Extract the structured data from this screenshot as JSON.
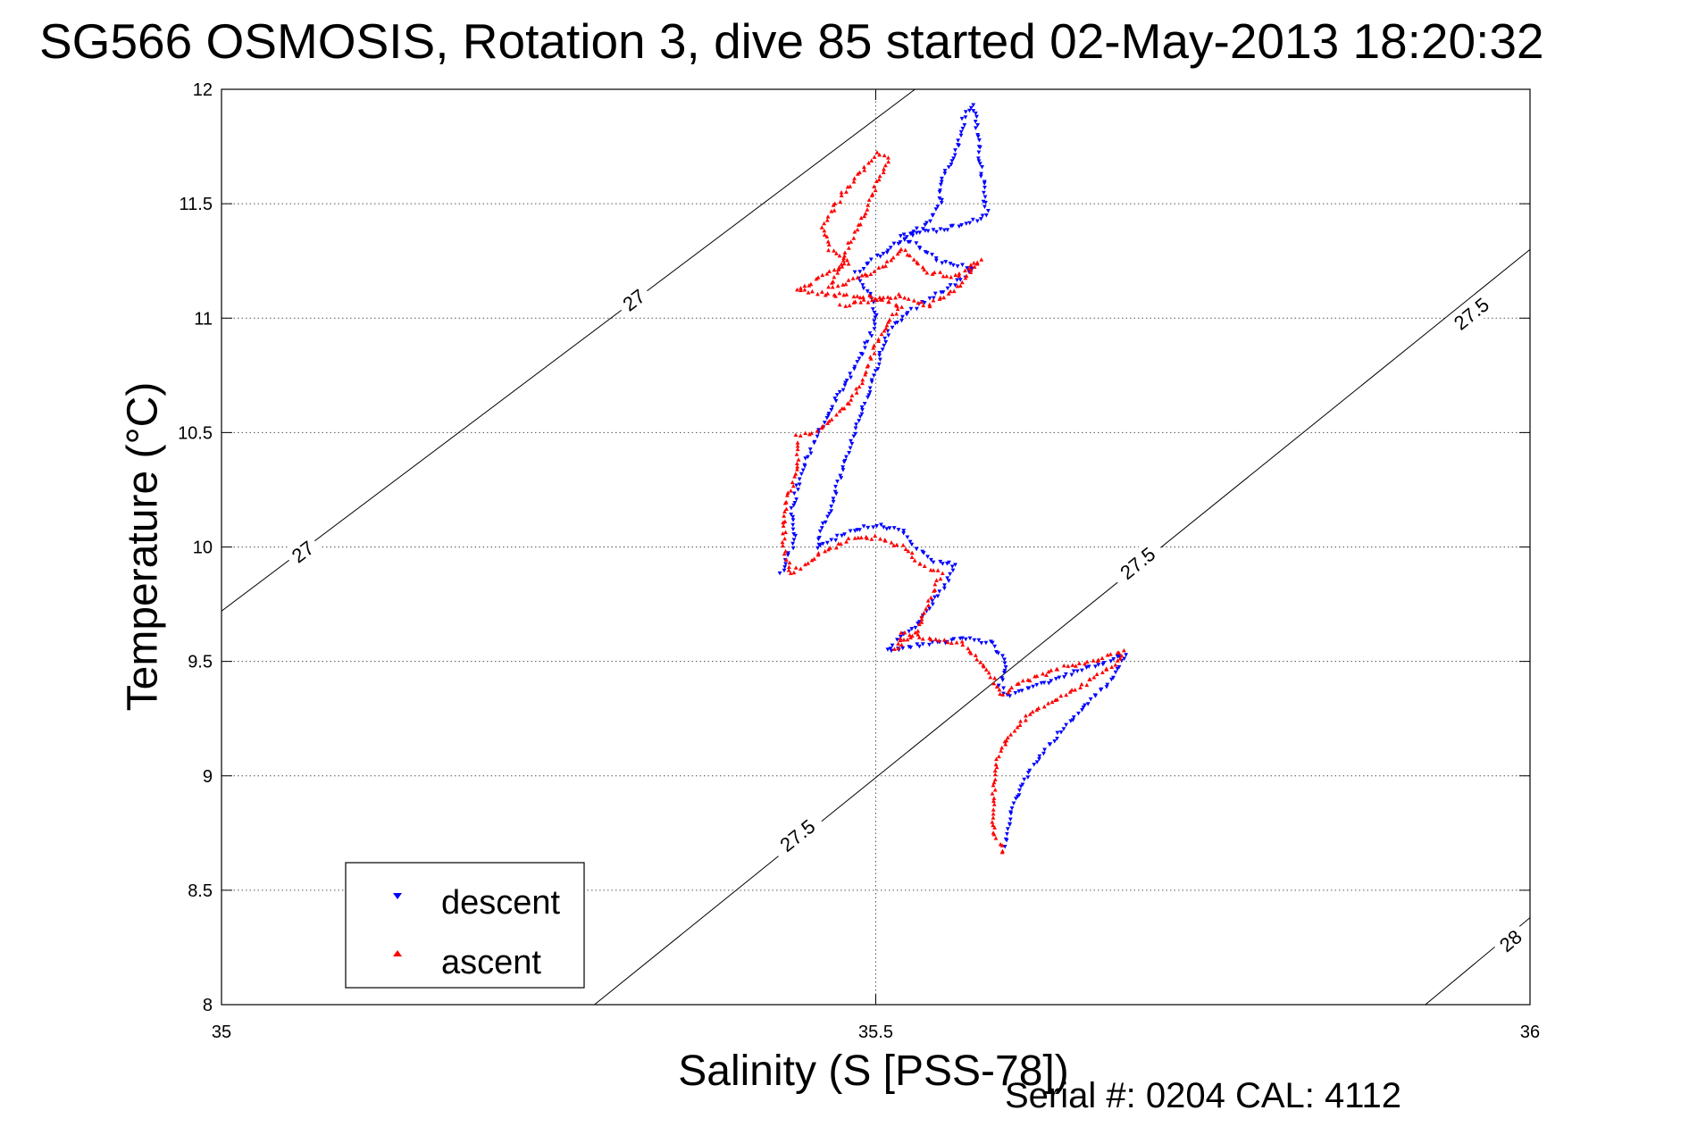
{
  "chart_data": {
    "type": "scatter",
    "title": "SG566 OSMOSIS, Rotation 3, dive 85 started 02-May-2013 18:20:32",
    "xlabel": "Salinity (S [PSS-78])",
    "ylabel": "Temperature (°C)",
    "footer": "Serial #: 0204  CAL: 4112",
    "xlim": [
      35,
      36
    ],
    "ylim": [
      8,
      12
    ],
    "xticks": [
      35,
      35.5,
      36
    ],
    "xtick_labels": [
      "35",
      "35.5",
      "36"
    ],
    "yticks": [
      8,
      8.5,
      9,
      9.5,
      10,
      10.5,
      11,
      11.5,
      12
    ],
    "ytick_labels": [
      "8",
      "8.5",
      "9",
      "9.5",
      "10",
      "10.5",
      "11",
      "11.5",
      "12"
    ],
    "grid": true,
    "legend_position": "bottom-left",
    "density_contours": [
      {
        "label": "27",
        "points": [
          [
            35.0,
            9.72
          ],
          [
            35.53,
            12.0
          ]
        ],
        "label_positions": [
          [
            35.062,
            9.98
          ],
          [
            35.315,
            11.08
          ]
        ]
      },
      {
        "label": "27.5",
        "points": [
          [
            35.285,
            8.0
          ],
          [
            36.0,
            11.3
          ]
        ],
        "label_positions": [
          [
            35.44,
            8.74
          ],
          [
            35.7,
            9.93
          ],
          [
            35.955,
            11.02
          ]
        ]
      },
      {
        "label": "28",
        "points": [
          [
            35.92,
            8.0
          ],
          [
            36.0,
            8.38
          ]
        ],
        "label_positions": [
          [
            35.985,
            8.28
          ]
        ]
      }
    ],
    "series": [
      {
        "name": "descent",
        "marker": "triangle-down",
        "color": "#0000ff",
        "path": [
          [
            35.428,
            9.88
          ],
          [
            35.432,
            9.95
          ],
          [
            35.438,
            10.03
          ],
          [
            35.435,
            10.15
          ],
          [
            35.442,
            10.3
          ],
          [
            35.452,
            10.45
          ],
          [
            35.46,
            10.55
          ],
          [
            35.47,
            10.65
          ],
          [
            35.48,
            10.75
          ],
          [
            35.49,
            10.85
          ],
          [
            35.496,
            10.92
          ],
          [
            35.5,
            11.0
          ],
          [
            35.498,
            11.08
          ],
          [
            35.49,
            11.15
          ],
          [
            35.485,
            11.2
          ],
          [
            35.5,
            11.27
          ],
          [
            35.52,
            11.34
          ],
          [
            35.54,
            11.42
          ],
          [
            35.55,
            11.5
          ],
          [
            35.55,
            11.6
          ],
          [
            35.56,
            11.7
          ],
          [
            35.565,
            11.8
          ],
          [
            35.568,
            11.9
          ],
          [
            35.575,
            11.93
          ],
          [
            35.585,
            11.45
          ],
          [
            35.56,
            11.4
          ],
          [
            35.54,
            11.38
          ],
          [
            35.52,
            11.36
          ],
          [
            35.55,
            11.25
          ],
          [
            35.575,
            11.22
          ],
          [
            35.555,
            11.13
          ],
          [
            35.53,
            11.05
          ],
          [
            35.51,
            10.95
          ],
          [
            35.455,
            10.0
          ],
          [
            35.48,
            10.07
          ],
          [
            35.5,
            10.1
          ],
          [
            35.52,
            10.07
          ],
          [
            35.53,
            10.0
          ],
          [
            35.545,
            9.94
          ],
          [
            35.56,
            9.93
          ],
          [
            35.555,
            9.85
          ],
          [
            35.53,
            9.65
          ],
          [
            35.52,
            9.62
          ],
          [
            35.51,
            9.55
          ],
          [
            35.54,
            9.58
          ],
          [
            35.57,
            9.6
          ],
          [
            35.59,
            9.58
          ],
          [
            35.6,
            9.48
          ],
          [
            35.595,
            9.4
          ],
          [
            35.6,
            9.35
          ],
          [
            35.615,
            9.38
          ],
          [
            35.64,
            9.43
          ],
          [
            35.67,
            9.49
          ],
          [
            35.69,
            9.53
          ],
          [
            35.68,
            9.42
          ],
          [
            35.65,
            9.25
          ],
          [
            35.63,
            9.12
          ],
          [
            35.615,
            9.0
          ],
          [
            35.605,
            8.88
          ],
          [
            35.6,
            8.75
          ],
          [
            35.598,
            8.68
          ]
        ]
      },
      {
        "name": "ascent",
        "marker": "triangle-up",
        "color": "#ff0000",
        "path": [
          [
            35.598,
            8.66
          ],
          [
            35.59,
            8.75
          ],
          [
            35.59,
            8.85
          ],
          [
            35.59,
            9.0
          ],
          [
            35.595,
            9.1
          ],
          [
            35.605,
            9.2
          ],
          [
            35.62,
            9.28
          ],
          [
            35.645,
            9.35
          ],
          [
            35.665,
            9.42
          ],
          [
            35.685,
            9.5
          ],
          [
            35.69,
            9.54
          ],
          [
            35.665,
            9.5
          ],
          [
            35.64,
            9.47
          ],
          [
            35.61,
            9.4
          ],
          [
            35.595,
            9.35
          ],
          [
            35.59,
            9.42
          ],
          [
            35.58,
            9.5
          ],
          [
            35.565,
            9.58
          ],
          [
            35.54,
            9.6
          ],
          [
            35.52,
            9.62
          ],
          [
            35.515,
            9.55
          ],
          [
            35.53,
            9.62
          ],
          [
            35.55,
            9.88
          ],
          [
            35.535,
            9.92
          ],
          [
            35.52,
            10.0
          ],
          [
            35.5,
            10.04
          ],
          [
            35.48,
            10.03
          ],
          [
            35.46,
            9.98
          ],
          [
            35.445,
            9.92
          ],
          [
            35.435,
            9.88
          ],
          [
            35.43,
            10.0
          ],
          [
            35.43,
            10.15
          ],
          [
            35.435,
            10.25
          ],
          [
            35.44,
            10.35
          ],
          [
            35.44,
            10.48
          ],
          [
            35.452,
            10.5
          ],
          [
            35.465,
            10.55
          ],
          [
            35.48,
            10.63
          ],
          [
            35.492,
            10.75
          ],
          [
            35.5,
            10.88
          ],
          [
            35.51,
            10.98
          ],
          [
            35.52,
            11.05
          ],
          [
            35.5,
            11.09
          ],
          [
            35.47,
            11.1
          ],
          [
            35.44,
            11.12
          ],
          [
            35.46,
            11.18
          ],
          [
            35.48,
            11.24
          ],
          [
            35.465,
            11.3
          ],
          [
            35.46,
            11.4
          ],
          [
            35.47,
            11.5
          ],
          [
            35.48,
            11.58
          ],
          [
            35.49,
            11.65
          ],
          [
            35.5,
            11.72
          ],
          [
            35.51,
            11.7
          ],
          [
            35.465,
            11.13
          ],
          [
            35.5,
            11.2
          ],
          [
            35.52,
            11.3
          ],
          [
            35.54,
            11.2
          ],
          [
            35.56,
            11.18
          ],
          [
            35.58,
            11.25
          ],
          [
            35.56,
            11.12
          ],
          [
            35.54,
            11.05
          ],
          [
            35.52,
            11.1
          ],
          [
            35.5,
            11.08
          ],
          [
            35.47,
            11.05
          ]
        ]
      }
    ]
  }
}
